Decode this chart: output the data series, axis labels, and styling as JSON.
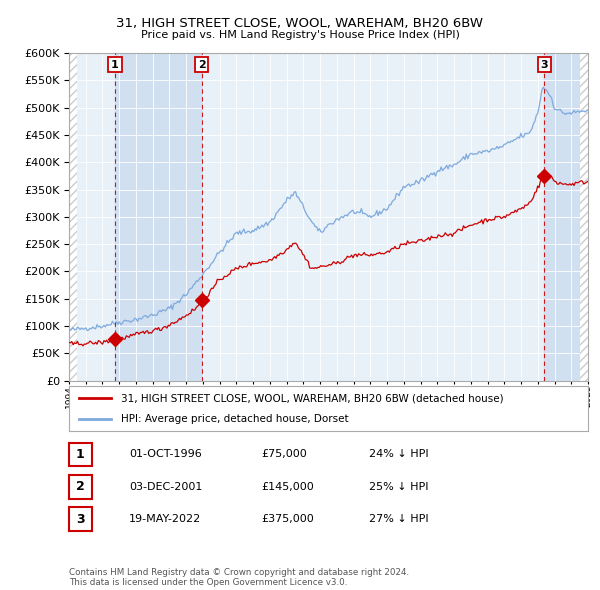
{
  "title": "31, HIGH STREET CLOSE, WOOL, WAREHAM, BH20 6BW",
  "subtitle": "Price paid vs. HM Land Registry's House Price Index (HPI)",
  "ylim": [
    0,
    600000
  ],
  "yticks": [
    0,
    50000,
    100000,
    150000,
    200000,
    250000,
    300000,
    350000,
    400000,
    450000,
    500000,
    550000,
    600000
  ],
  "year_start": 1994,
  "year_end": 2025,
  "transactions": [
    {
      "date": 1996.75,
      "price": 75000,
      "label": "1"
    },
    {
      "date": 2001.92,
      "price": 145000,
      "label": "2"
    },
    {
      "date": 2022.38,
      "price": 375000,
      "label": "3"
    }
  ],
  "table_rows": [
    {
      "label": "1",
      "date": "01-OCT-1996",
      "price": "£75,000",
      "pct": "24% ↓ HPI"
    },
    {
      "label": "2",
      "date": "03-DEC-2001",
      "price": "£145,000",
      "pct": "25% ↓ HPI"
    },
    {
      "label": "3",
      "date": "19-MAY-2022",
      "price": "£375,000",
      "pct": "27% ↓ HPI"
    }
  ],
  "legend_property": "31, HIGH STREET CLOSE, WOOL, WAREHAM, BH20 6BW (detached house)",
  "legend_hpi": "HPI: Average price, detached house, Dorset",
  "footer": "Contains HM Land Registry data © Crown copyright and database right 2024.\nThis data is licensed under the Open Government Licence v3.0.",
  "property_color": "#cc0000",
  "hpi_color": "#7eaadd",
  "background_chart": "#e8f0f8",
  "background_shaded": "#d0e0f0",
  "grid_color": "#ffffff",
  "dashed_color": "#cc0000",
  "hatch_color": "#cccccc"
}
